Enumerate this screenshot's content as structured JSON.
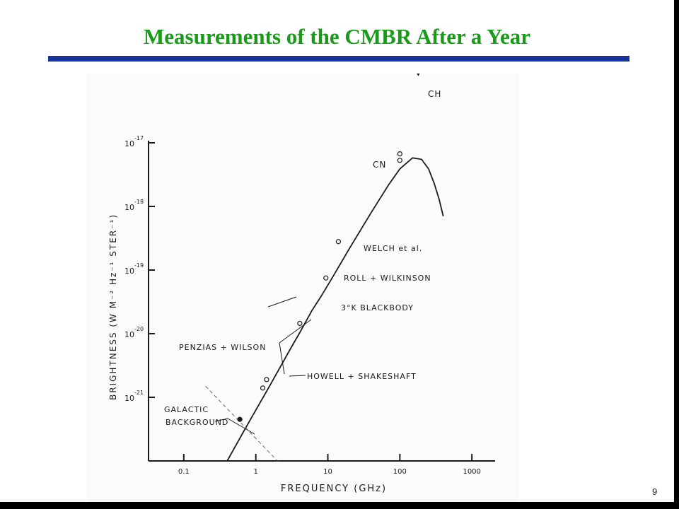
{
  "slide": {
    "title": "Measurements of the CMBR After a Year",
    "page_number": "9",
    "colors": {
      "title": "#1a9a1a",
      "rule": "#16339a",
      "ink": "#1a1a1a"
    }
  },
  "chart_data": {
    "type": "line",
    "title": "",
    "xlabel": "FREQUENCY (GHz)",
    "ylabel": "BRIGHTNESS (W M⁻² Hz⁻¹ STER⁻¹)",
    "x_scale": "log",
    "y_scale": "log",
    "xlim": [
      0.0324,
      2100
    ],
    "ylim": [
      1e-22,
      1e-17
    ],
    "x_ticks": [
      {
        "value": 0.1,
        "label": "0.1"
      },
      {
        "value": 1,
        "label": "1"
      },
      {
        "value": 10,
        "label": "10"
      },
      {
        "value": 100,
        "label": "100"
      },
      {
        "value": 1000,
        "label": "1000"
      }
    ],
    "y_ticks": [
      {
        "value": 1e-17,
        "base": "10",
        "exp": "-17"
      },
      {
        "value": 1e-18,
        "base": "10",
        "exp": "-18"
      },
      {
        "value": 1e-19,
        "base": "10",
        "exp": "-19"
      },
      {
        "value": 1e-20,
        "base": "10",
        "exp": "-20"
      },
      {
        "value": 1e-21,
        "base": "10",
        "exp": "-21"
      }
    ],
    "series": [
      {
        "name": "3°K BLACKBODY",
        "x": [
          0.4,
          0.7,
          1,
          1.5,
          2,
          3,
          4,
          6,
          8,
          12,
          20,
          40,
          70,
          100,
          150,
          200,
          250,
          300,
          350,
          400
        ],
        "y": [
          1e-22,
          3.1e-22,
          6.3e-22,
          1.4e-21,
          2.5e-21,
          5.7e-21,
          1e-20,
          2.3e-20,
          3.8e-20,
          8.2e-20,
          2.2e-19,
          8e-19,
          2.2e-18,
          3.9e-18,
          5.8e-18,
          5.5e-18,
          3.9e-18,
          2.3e-18,
          1.3e-18,
          7e-19
        ]
      }
    ],
    "points": [
      {
        "label": "CN",
        "x": 100,
        "y": 5.3e-18,
        "marker": "open",
        "upper_limit": false
      },
      {
        "label": "CN",
        "x": 100,
        "y": 6.7e-18,
        "marker": "open",
        "upper_limit": false
      },
      {
        "label": "CH",
        "x": 180,
        "y": 1.6e-16,
        "marker": "open",
        "upper_limit": true
      },
      {
        "label": "WELCH et al.",
        "x": 14,
        "y": 2.8e-19,
        "marker": "open",
        "upper_limit": false
      },
      {
        "label": "ROLL + WILKINSON",
        "x": 9.4,
        "y": 7.5e-20,
        "marker": "open",
        "upper_limit": false
      },
      {
        "label": "PENZIAS + WILSON",
        "x": 4.08,
        "y": 1.45e-20,
        "marker": "open",
        "upper_limit": false
      },
      {
        "label": "HOWELL + SHAKESHAFT",
        "x": 1.41,
        "y": 1.9e-21,
        "marker": "open",
        "upper_limit": false
      },
      {
        "label": "HOWELL + SHAKESHAFT",
        "x": 1.25,
        "y": 1.4e-21,
        "marker": "open",
        "upper_limit": false
      },
      {
        "label": "GALACTIC BACKGROUND",
        "x": 0.6,
        "y": 4.5e-22,
        "marker": "filled",
        "upper_limit": false
      }
    ],
    "galactic_background_line": {
      "x": [
        0.2,
        2
      ],
      "y": [
        1.5e-21,
        1e-22
      ]
    },
    "annotations": [
      {
        "id": "ch",
        "text": "CH"
      },
      {
        "id": "cn",
        "text": "CN"
      },
      {
        "id": "welch",
        "text": "WELCH et al."
      },
      {
        "id": "roll",
        "text": "ROLL + WILKINSON"
      },
      {
        "id": "blackbody",
        "text": "3°K BLACKBODY"
      },
      {
        "id": "penzias",
        "text": "PENZIAS + WILSON"
      },
      {
        "id": "howell",
        "text": "HOWELL + SHAKESHAFT"
      },
      {
        "id": "galactic1",
        "text": "GALACTIC"
      },
      {
        "id": "galactic2",
        "text": "BACKGROUND"
      }
    ],
    "grid": false,
    "legend": "none"
  }
}
